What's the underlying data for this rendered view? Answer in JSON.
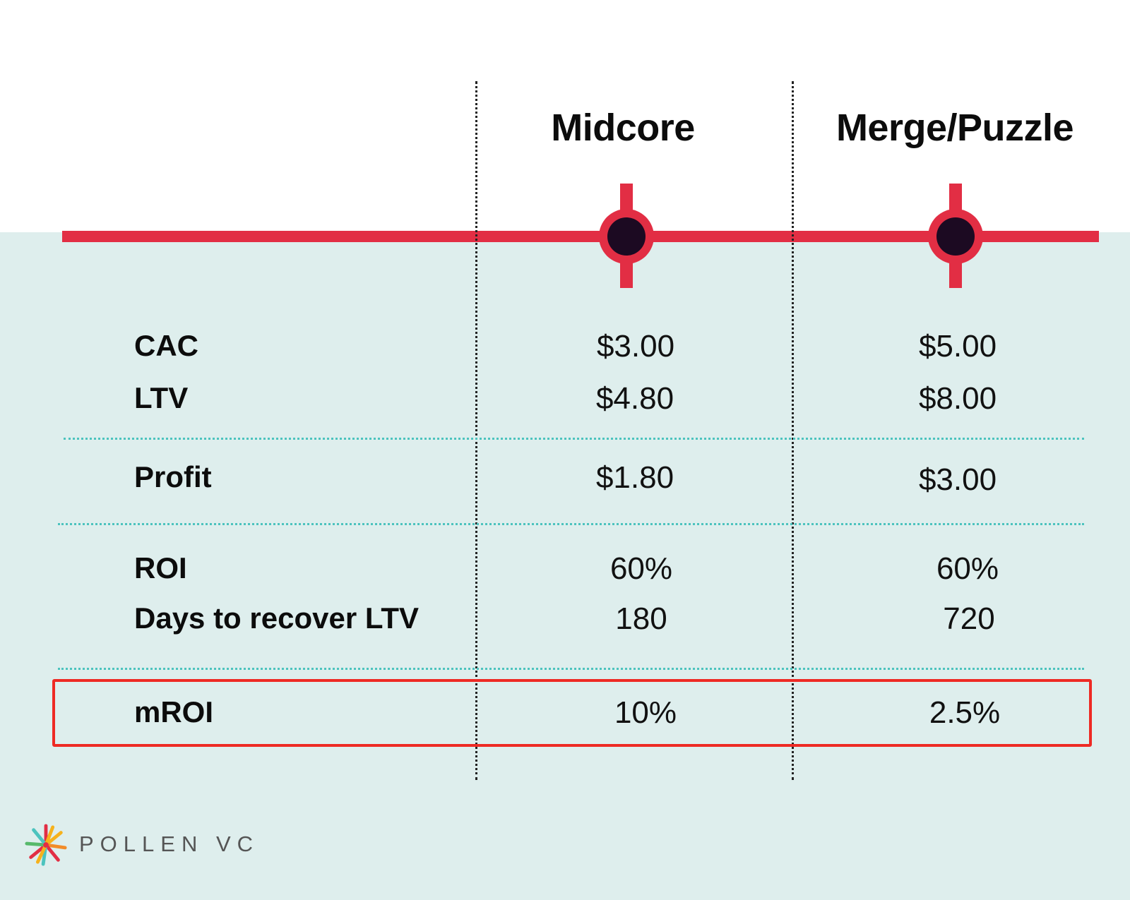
{
  "columns": [
    "Midcore",
    "Merge/Puzzle"
  ],
  "rows": [
    {
      "label": "CAC",
      "values": [
        "$3.00",
        "$5.00"
      ]
    },
    {
      "label": "LTV",
      "values": [
        "$4.80",
        "$8.00"
      ]
    },
    {
      "label": "Profit",
      "values": [
        "$1.80",
        "$3.00"
      ]
    },
    {
      "label": "ROI",
      "values": [
        "60%",
        "60%"
      ]
    },
    {
      "label": "Days to recover LTV",
      "values": [
        "180",
        "720"
      ]
    },
    {
      "label": "mROI",
      "values": [
        "10%",
        "2.5%"
      ]
    }
  ],
  "highlighted_row": "mROI",
  "brand": "POLLEN VC",
  "colors": {
    "accent": "#e22e44",
    "marker_core": "#1c0a22",
    "background_lower": "#deeeed",
    "separator": "#4cc3be",
    "highlight_border": "#ee2a24"
  }
}
